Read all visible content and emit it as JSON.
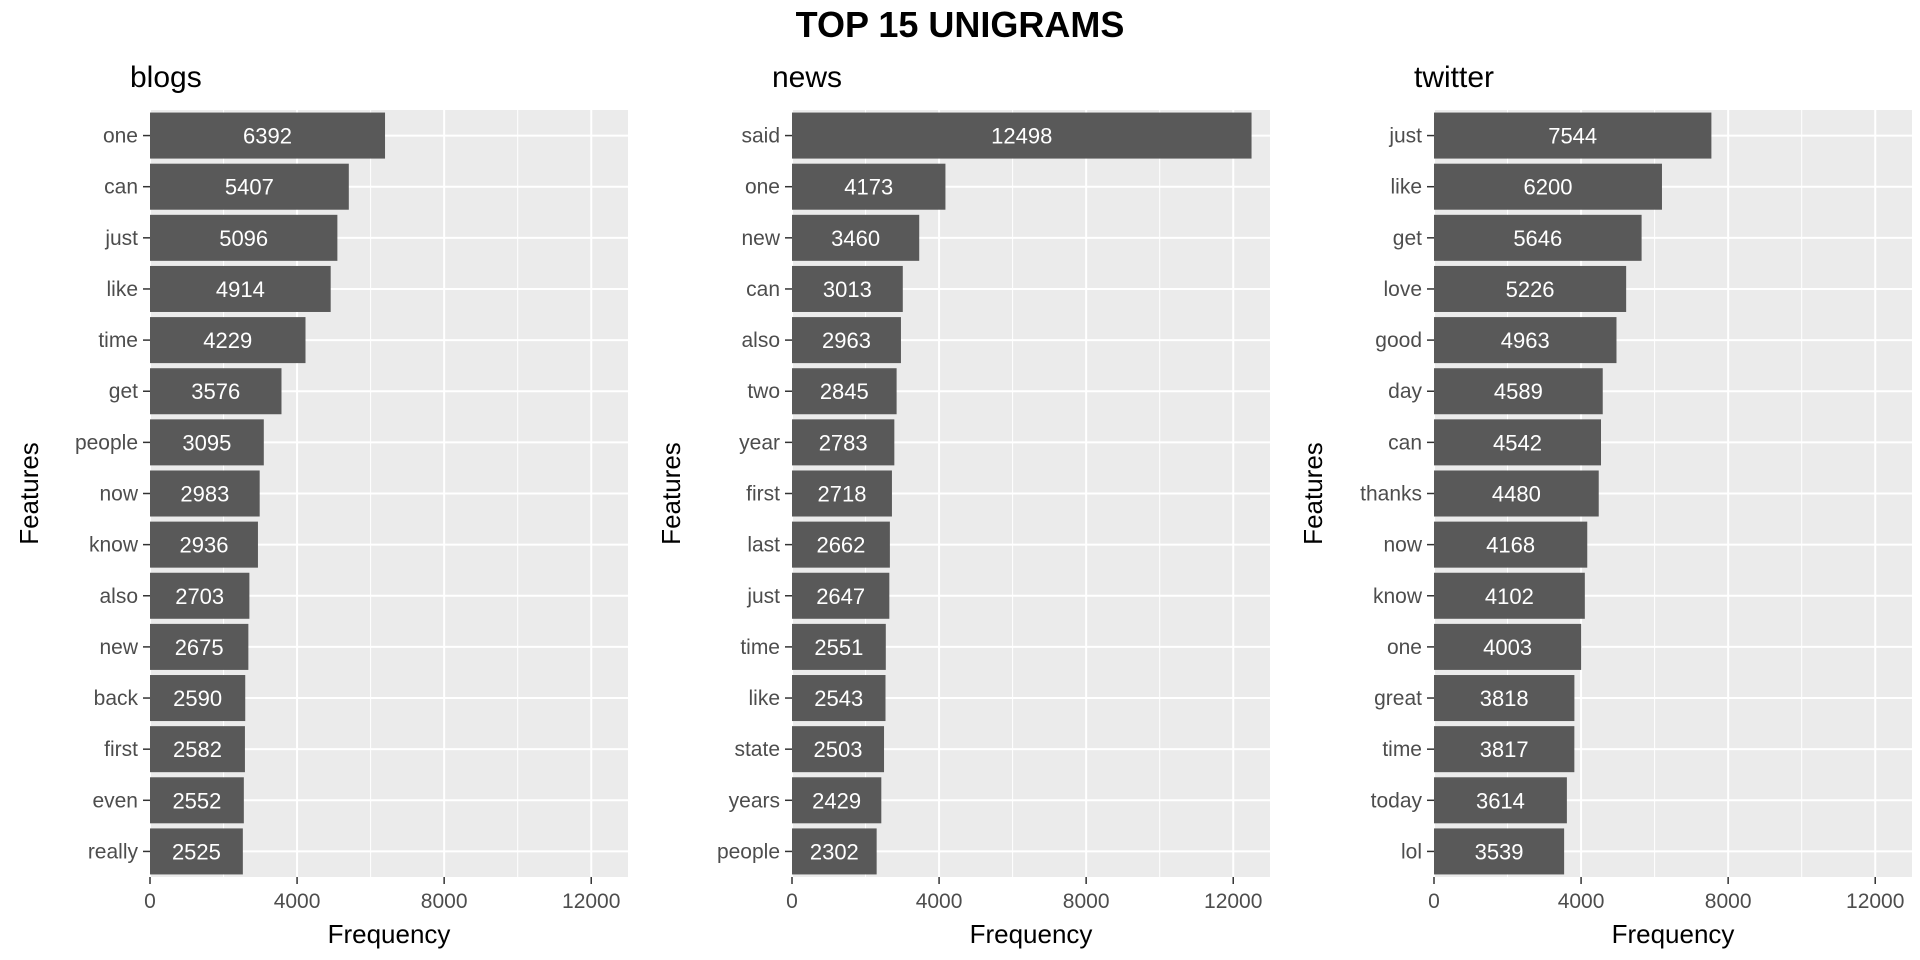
{
  "page_title": "TOP 15 UNIGRAMS",
  "colors": {
    "panel_bg": "#EBEBEB",
    "grid": "#FFFFFF",
    "bar": "#595959",
    "bar_label": "#FFFFFF",
    "tick_label": "#4D4D4D",
    "text": "#000000"
  },
  "chart_data": [
    {
      "type": "bar",
      "orientation": "horizontal",
      "title": "blogs",
      "xlabel": "Frequency",
      "ylabel": "Features",
      "xlim": [
        0,
        13000
      ],
      "xticks": [
        0,
        4000,
        8000,
        12000
      ],
      "grid": true,
      "categories": [
        "one",
        "can",
        "just",
        "like",
        "time",
        "get",
        "people",
        "now",
        "know",
        "also",
        "new",
        "back",
        "first",
        "even",
        "really"
      ],
      "values": [
        6392,
        5407,
        5096,
        4914,
        4229,
        3576,
        3095,
        2983,
        2936,
        2703,
        2675,
        2590,
        2582,
        2552,
        2525
      ]
    },
    {
      "type": "bar",
      "orientation": "horizontal",
      "title": "news",
      "xlabel": "Frequency",
      "ylabel": "Features",
      "xlim": [
        0,
        13000
      ],
      "xticks": [
        0,
        4000,
        8000,
        12000
      ],
      "grid": true,
      "categories": [
        "said",
        "one",
        "new",
        "can",
        "also",
        "two",
        "year",
        "first",
        "last",
        "just",
        "time",
        "like",
        "state",
        "years",
        "people"
      ],
      "values": [
        12498,
        4173,
        3460,
        3013,
        2963,
        2845,
        2783,
        2718,
        2662,
        2647,
        2551,
        2543,
        2503,
        2429,
        2302
      ]
    },
    {
      "type": "bar",
      "orientation": "horizontal",
      "title": "twitter",
      "xlabel": "Frequency",
      "ylabel": "Features",
      "xlim": [
        0,
        13000
      ],
      "xticks": [
        0,
        4000,
        8000,
        12000
      ],
      "grid": true,
      "categories": [
        "just",
        "like",
        "get",
        "love",
        "good",
        "day",
        "can",
        "thanks",
        "now",
        "know",
        "one",
        "great",
        "time",
        "today",
        "lol"
      ],
      "values": [
        7544,
        6200,
        5646,
        5226,
        4963,
        4589,
        4542,
        4480,
        4168,
        4102,
        4003,
        3818,
        3817,
        3614,
        3539
      ]
    }
  ]
}
